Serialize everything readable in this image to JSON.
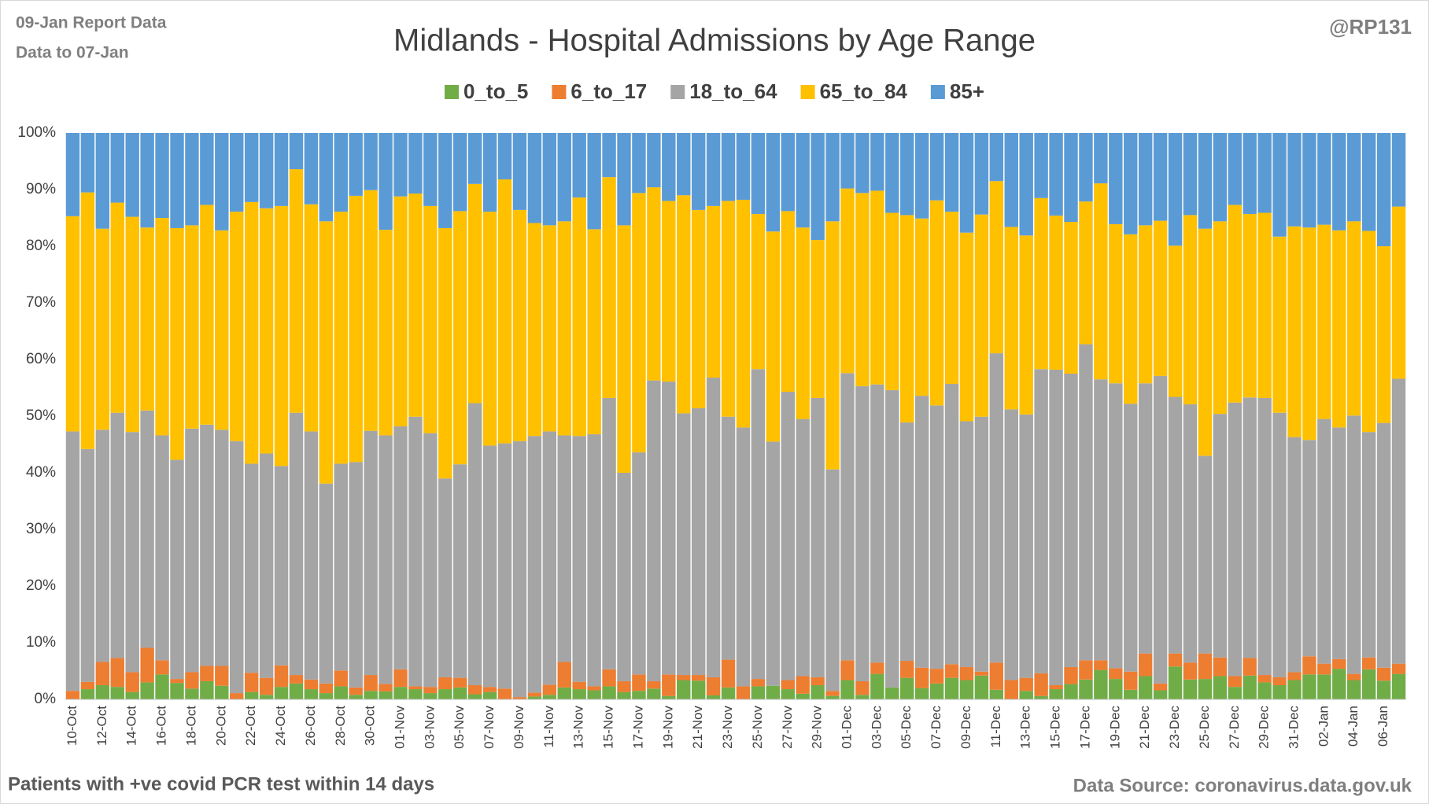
{
  "chart_data": {
    "type": "stacked_bar_100",
    "title": "Midlands - Hospital Admissions by Age Range",
    "report_note": "09-Jan Report Data",
    "data_note": "Data to 07-Jan",
    "author": "@RP131",
    "footnote": "Patients with  +ve covid PCR test within 14 days",
    "source": "Data Source: coronavirus.data.gov.uk",
    "categories": [
      "10-Oct",
      null,
      "12-Oct",
      null,
      "14-Oct",
      null,
      "16-Oct",
      null,
      "18-Oct",
      null,
      "20-Oct",
      null,
      "22-Oct",
      null,
      "24-Oct",
      null,
      "26-Oct",
      null,
      "28-Oct",
      null,
      "30-Oct",
      null,
      "01-Nov",
      null,
      "03-Nov",
      null,
      "05-Nov",
      null,
      "07-Nov",
      null,
      "09-Nov",
      null,
      "11-Nov",
      null,
      "13-Nov",
      null,
      "15-Nov",
      null,
      "17-Nov",
      null,
      "19-Nov",
      null,
      "21-Nov",
      null,
      "23-Nov",
      null,
      "25-Nov",
      null,
      "27-Nov",
      null,
      "29-Nov",
      null,
      "01-Dec",
      null,
      "03-Dec",
      null,
      "05-Dec",
      null,
      "07-Dec",
      null,
      "09-Dec",
      null,
      "11-Dec",
      null,
      "13-Dec",
      null,
      "15-Dec",
      null,
      "17-Dec",
      null,
      "19-Dec",
      null,
      "21-Dec",
      null,
      "23-Dec",
      null,
      "25-Dec",
      null,
      "27-Dec",
      null,
      "29-Dec",
      null,
      "31-Dec",
      null,
      "02-Jan",
      null,
      "04-Jan",
      null,
      "06-Jan",
      null
    ],
    "series": [
      {
        "name": "0_to_5",
        "color": "#70AD47",
        "values": [
          0,
          1.8,
          2.5,
          2.2,
          1.3,
          3.0,
          4.4,
          2.9,
          1.9,
          3.2,
          2.4,
          0,
          1.3,
          0.8,
          2.2,
          2.8,
          1.8,
          1.1,
          2.3,
          0.8,
          1.5,
          1.4,
          2.2,
          1.8,
          1.1,
          1.8,
          2.1,
          0.9,
          1.3,
          0,
          0,
          0.5,
          0.8,
          2.1,
          1.8,
          1.6,
          2.3,
          1.3,
          1.5,
          1.9,
          0.6,
          3.4,
          3.3,
          0.7,
          2.1,
          0,
          2.3,
          2.4,
          1.8,
          1.0,
          2.5,
          0.6,
          3.4,
          0.8,
          4.5,
          2.1,
          3.8,
          2.0,
          2.8,
          3.8,
          3.4,
          4.2,
          1.7,
          0,
          1.5,
          0.6,
          1.8,
          2.7,
          3.5,
          5.2,
          3.6,
          1.7,
          4.1,
          1.6,
          5.8,
          3.5,
          3.6,
          4.1,
          2.2,
          4.2,
          3.0,
          2.5,
          3.4,
          4.4,
          4.4,
          5.4,
          3.4,
          5.3,
          3.3,
          4.5
        ]
      },
      {
        "name": "6_to_17",
        "color": "#ED7D31",
        "values": [
          1.5,
          1.3,
          4.1,
          5.1,
          3.5,
          6.1,
          2.5,
          0.7,
          2.9,
          2.7,
          3.5,
          1.1,
          3.4,
          3.0,
          3.8,
          1.5,
          1.7,
          1.7,
          2.8,
          1.3,
          2.8,
          1.3,
          3.1,
          0.5,
          1.1,
          2.1,
          1.7,
          1.6,
          0.9,
          1.9,
          0.4,
          0.7,
          1.8,
          4.5,
          1.3,
          0.7,
          3.0,
          1.9,
          2.9,
          1.3,
          3.8,
          0.9,
          1.0,
          3.2,
          4.9,
          2.3,
          1.3,
          0,
          1.6,
          3.1,
          1.4,
          0.9,
          3.5,
          2.4,
          2.0,
          0,
          3.0,
          3.6,
          2.6,
          2.4,
          2.3,
          0.7,
          4.8,
          3.4,
          2.3,
          4.0,
          0.7,
          3.0,
          3.4,
          1.7,
          1.9,
          3.2,
          4.0,
          1.2,
          2.3,
          3.0,
          4.5,
          3.3,
          1.9,
          3.1,
          1.3,
          1.4,
          1.4,
          3.2,
          1.9,
          1.7,
          1.1,
          2.1,
          2.3,
          1.8
        ]
      },
      {
        "name": "18_to_64",
        "color": "#A5A5A5",
        "values": [
          45.8,
          41.1,
          41.0,
          43.3,
          42.4,
          41.9,
          39.7,
          38.7,
          43.0,
          42.6,
          41.7,
          44.5,
          36.9,
          39.6,
          35.2,
          46.3,
          43.8,
          35.3,
          36.5,
          39.8,
          43.1,
          43.9,
          42.9,
          47.6,
          44.8,
          35.1,
          37.7,
          49.8,
          42.6,
          43.3,
          45.2,
          45.3,
          44.7,
          40.0,
          43.4,
          44.5,
          47.9,
          36.8,
          39.2,
          53.1,
          51.7,
          46.2,
          47.1,
          52.9,
          42.9,
          45.7,
          54.7,
          43.1,
          50.9,
          45.4,
          49.3,
          39.1,
          50.7,
          52.1,
          49.1,
          52.5,
          42.1,
          48.0,
          46.5,
          49.5,
          43.4,
          45.0,
          54.6,
          47.8,
          46.5,
          53.7,
          55.7,
          51.8,
          55.8,
          49.6,
          50.3,
          47.3,
          47.7,
          54.3,
          45.3,
          45.6,
          34.9,
          43.0,
          48.3,
          46.0,
          48.9,
          46.7,
          41.5,
          38.2,
          43.2,
          40.9,
          45.6,
          39.8,
          43.2,
          50.3
        ]
      },
      {
        "name": "65_to_84",
        "color": "#FFC000",
        "values": [
          38.0,
          45.3,
          35.5,
          37.1,
          38.0,
          32.3,
          38.4,
          40.9,
          35.9,
          38.8,
          35.2,
          40.5,
          46.2,
          43.3,
          45.9,
          43.0,
          40.1,
          46.3,
          44.5,
          47.0,
          42.5,
          36.3,
          40.6,
          39.4,
          40.1,
          44.2,
          44.7,
          38.7,
          41.3,
          46.6,
          40.8,
          37.6,
          36.4,
          37.8,
          42.1,
          36.2,
          39.0,
          43.7,
          45.8,
          34.1,
          31.9,
          38.5,
          35.0,
          30.3,
          38.1,
          40.2,
          27.4,
          37.1,
          31.9,
          33.8,
          27.9,
          43.8,
          32.6,
          34.1,
          34.2,
          31.3,
          36.6,
          31.3,
          36.2,
          30.4,
          33.3,
          35.7,
          30.4,
          32.2,
          31.6,
          30.2,
          27.2,
          26.8,
          25.2,
          34.6,
          28.1,
          29.9,
          27.9,
          27.4,
          26.7,
          33.4,
          40.1,
          34.0,
          34.9,
          32.4,
          32.7,
          31.1,
          37.2,
          37.5,
          34.3,
          34.8,
          34.3,
          35.5,
          31.2,
          30.4
        ]
      },
      {
        "name": "85+",
        "color": "#5B9BD5",
        "values": [
          14.7,
          10.5,
          16.9,
          12.3,
          14.8,
          16.7,
          15.0,
          16.8,
          16.3,
          12.7,
          17.2,
          13.9,
          12.2,
          13.3,
          12.9,
          6.4,
          12.6,
          15.6,
          13.9,
          11.1,
          10.1,
          17.1,
          11.2,
          10.7,
          12.9,
          16.8,
          13.8,
          9.0,
          13.9,
          8.2,
          13.6,
          15.9,
          16.3,
          15.6,
          11.4,
          17.0,
          7.8,
          16.3,
          10.6,
          9.6,
          12.0,
          11.0,
          13.6,
          12.9,
          12.0,
          11.8,
          14.3,
          17.4,
          13.8,
          16.7,
          18.9,
          15.6,
          9.8,
          10.6,
          10.2,
          14.1,
          14.5,
          15.1,
          11.9,
          13.9,
          17.6,
          14.4,
          8.5,
          16.6,
          18.1,
          11.5,
          14.6,
          15.7,
          12.1,
          8.9,
          16.1,
          17.9,
          16.3,
          15.5,
          19.9,
          14.5,
          16.9,
          15.6,
          12.7,
          14.3,
          14.1,
          18.3,
          16.5,
          16.7,
          16.2,
          17.2,
          15.6,
          17.3,
          20.0,
          13.0
        ]
      }
    ],
    "ylim": [
      0,
      100
    ],
    "yticks": [
      {
        "value": 0,
        "label": "0%"
      },
      {
        "value": 10,
        "label": "10%"
      },
      {
        "value": 20,
        "label": "20%"
      },
      {
        "value": 30,
        "label": "30%"
      },
      {
        "value": 40,
        "label": "40%"
      },
      {
        "value": 50,
        "label": "50%"
      },
      {
        "value": 60,
        "label": "60%"
      },
      {
        "value": 70,
        "label": "70%"
      },
      {
        "value": 80,
        "label": "80%"
      },
      {
        "value": 90,
        "label": "90%"
      },
      {
        "value": 100,
        "label": "100%"
      }
    ],
    "grid": false,
    "legend": "top"
  }
}
